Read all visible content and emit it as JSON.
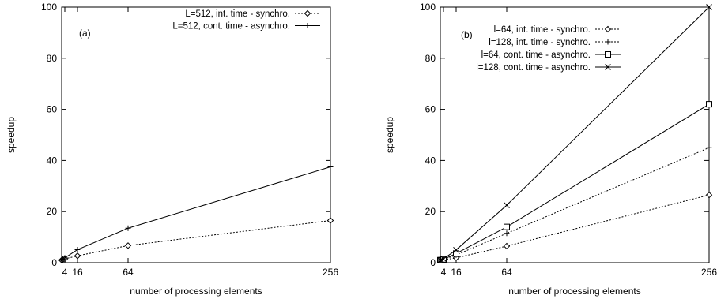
{
  "chart_data": [
    {
      "type": "line",
      "panel_label": "(a)",
      "xlabel": "number of processing elements",
      "ylabel": "speedup",
      "xlim": [
        1,
        256
      ],
      "ylim": [
        0,
        100
      ],
      "xticks": [
        4,
        16,
        64,
        256
      ],
      "yticks": [
        0,
        20,
        40,
        60,
        80,
        100
      ],
      "grid": false,
      "legend_position": "top-right",
      "series": [
        {
          "name": "L=512, int. time - synchro.",
          "marker": "diamond",
          "dash": "dotted",
          "x": [
            1,
            2,
            4,
            16,
            64,
            256
          ],
          "y": [
            1,
            1.2,
            1.5,
            2.7,
            6.7,
            16.5
          ]
        },
        {
          "name": "L=512, cont. time - asynchro.",
          "marker": "plus",
          "dash": "solid",
          "x": [
            1,
            2,
            4,
            16,
            64,
            256
          ],
          "y": [
            1,
            1.4,
            1.9,
            5.1,
            13.5,
            37.5
          ]
        }
      ]
    },
    {
      "type": "line",
      "panel_label": "(b)",
      "xlabel": "number of processing elements",
      "ylabel": "speedup",
      "xlim": [
        1,
        256
      ],
      "ylim": [
        0,
        100
      ],
      "xticks": [
        4,
        16,
        64,
        256
      ],
      "yticks": [
        0,
        20,
        40,
        60,
        80,
        100
      ],
      "grid": false,
      "legend_position": "top-left",
      "series": [
        {
          "name": "l=64, int. time - synchro.",
          "marker": "diamond",
          "dash": "dotted",
          "x": [
            1,
            2,
            4,
            16,
            64,
            256
          ],
          "y": [
            1,
            1,
            1.1,
            1.9,
            6.5,
            26.5
          ]
        },
        {
          "name": "l=128, int. time - synchro.",
          "marker": "plus",
          "dash": "dotted",
          "x": [
            1,
            2,
            4,
            16,
            64,
            256
          ],
          "y": [
            1,
            1,
            1.2,
            3.0,
            11.5,
            45.0
          ]
        },
        {
          "name": "l=64, cont. time - asynchro.",
          "marker": "square",
          "dash": "solid",
          "x": [
            1,
            2,
            4,
            16,
            64,
            256
          ],
          "y": [
            1,
            1,
            1.3,
            3.6,
            14.0,
            62.0
          ]
        },
        {
          "name": "l=128, cont. time - asynchro.",
          "marker": "cross",
          "dash": "solid",
          "x": [
            1,
            2,
            4,
            16,
            64,
            256
          ],
          "y": [
            1,
            1.1,
            1.5,
            5.0,
            22.5,
            100.0
          ]
        }
      ]
    }
  ]
}
